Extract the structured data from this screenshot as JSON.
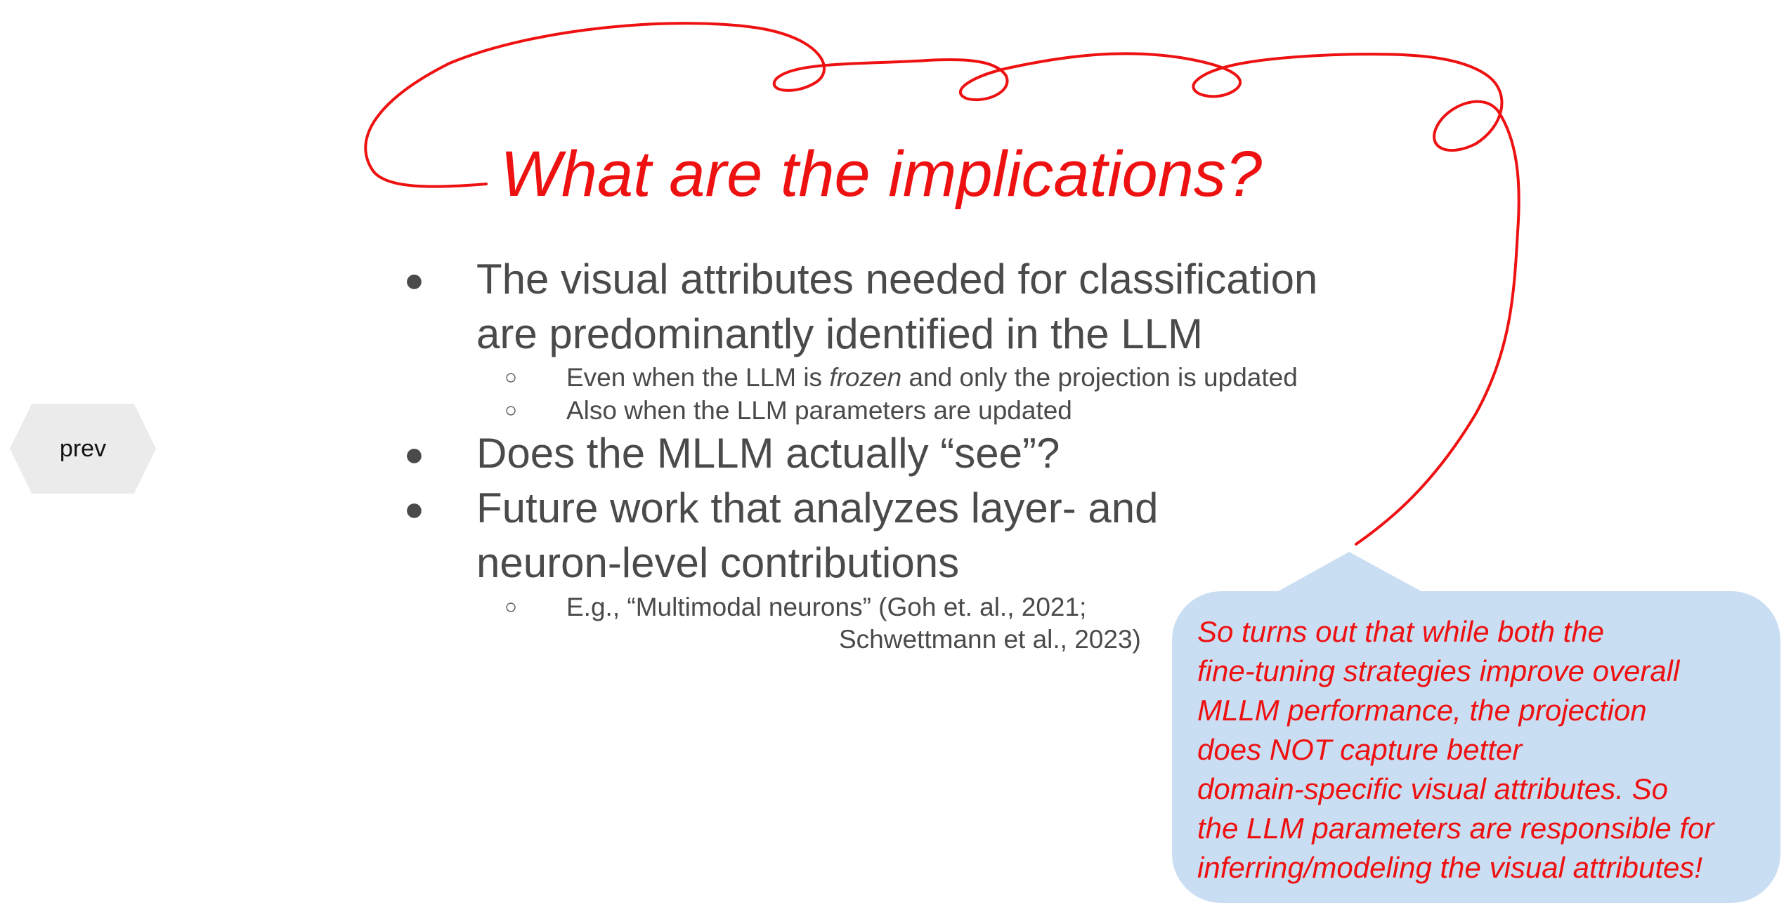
{
  "slide": {
    "title": "What are the implications?",
    "bullets": [
      {
        "level": 1,
        "lines": [
          "The visual attributes needed for classification",
          "are predominantly identified in the LLM"
        ]
      },
      {
        "level": 2,
        "pre": "Even when the LLM is ",
        "emph": "frozen",
        "post": " and only the projection is updated"
      },
      {
        "level": 2,
        "text": "Also when the LLM parameters are updated"
      },
      {
        "level": 1,
        "lines": [
          "Does the MLLM actually “see”?"
        ]
      },
      {
        "level": 1,
        "lines": [
          "Future work that analyzes layer- and",
          "neuron-level contributions"
        ]
      },
      {
        "level": 2,
        "lines": [
          "E.g., “Multimodal neurons” (Goh et. al., 2021;",
          "Schwettmann et al., 2023)"
        ]
      }
    ],
    "bullet_marker_l1": "●",
    "bullet_marker_l2": "○"
  },
  "nav": {
    "prev_label": "prev"
  },
  "callout": {
    "text": "So turns out that while both the\nfine-tuning strategies improve overall\nMLLM performance, the projection\ndoes NOT capture better\ndomain-specific visual attributes. So\nthe LLM parameters are responsible for\ninferring/modeling the visual attributes!"
  },
  "colors": {
    "title": "#ee1111",
    "body_text": "#4a4a4a",
    "scribble": "#ee1111",
    "callout_bg": "#c9def2",
    "callout_text": "#ee1111",
    "prev_bg": "#ebebeb"
  }
}
